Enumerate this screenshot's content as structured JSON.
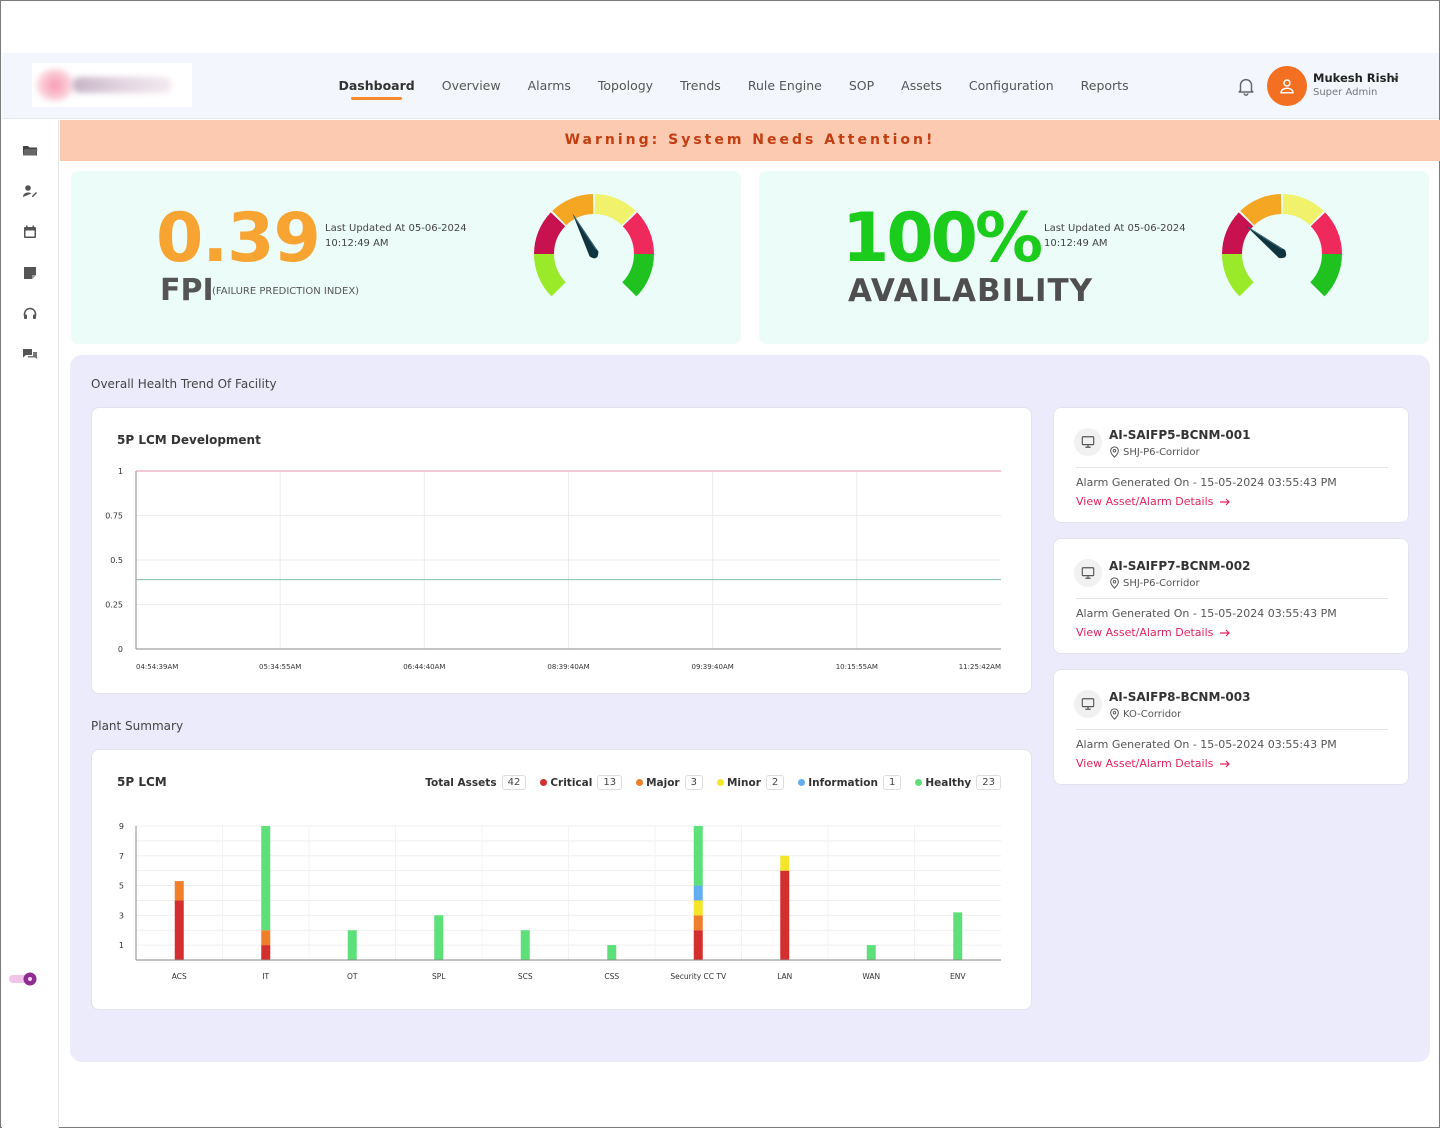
{
  "header": {
    "nav": [
      "Dashboard",
      "Overview",
      "Alarms",
      "Topology",
      "Trends",
      "Rule Engine",
      "SOP",
      "Assets",
      "Configuration",
      "Reports"
    ],
    "active_nav": "Dashboard",
    "user": {
      "name": "Mukesh Rishi",
      "role": "Super Admin"
    }
  },
  "sidebar": {
    "icons": [
      "folder-icon",
      "user-edit-icon",
      "calendar-icon",
      "note-icon",
      "headset-icon",
      "chat-icon"
    ]
  },
  "warning": "Warning: System Needs Attention!",
  "kpi": {
    "fpi": {
      "value": "0.39",
      "updated_line1": "Last Updated At 05-06-2024",
      "updated_line2": "10:12:49 AM",
      "label": "FPI",
      "sublabel": "(FAILURE PREDICTION INDEX)"
    },
    "availability": {
      "value": "100%",
      "updated_line1": "Last Updated At 05-06-2024",
      "updated_line2": "10:12:49 AM",
      "label": "AVAILABILITY"
    }
  },
  "main": {
    "health_title": "Overall Health Trend Of Facility",
    "health_card_title": "5P LCM Development",
    "plant_title": "Plant Summary",
    "plant_card_title": "5P LCM",
    "legend": [
      {
        "label": "Total Assets",
        "count": "42",
        "color": ""
      },
      {
        "label": "Critical",
        "count": "13",
        "color": "#d32f2f"
      },
      {
        "label": "Major",
        "count": "3",
        "color": "#f07f2c"
      },
      {
        "label": "Minor",
        "count": "2",
        "color": "#f3e52a"
      },
      {
        "label": "Information",
        "count": "1",
        "color": "#64aef0"
      },
      {
        "label": "Healthy",
        "count": "23",
        "color": "#5de07a"
      }
    ]
  },
  "alarms": [
    {
      "id": "AI-SAIFP5-BCNM-001",
      "location": "SHJ-P6-Corridor",
      "generated": "Alarm Generated On - 15-05-2024 03:55:43 PM",
      "link": "View Asset/Alarm Details"
    },
    {
      "id": "AI-SAIFP7-BCNM-002",
      "location": "SHJ-P6-Corridor",
      "generated": "Alarm Generated On - 15-05-2024 03:55:43 PM",
      "link": "View Asset/Alarm Details"
    },
    {
      "id": "AI-SAIFP8-BCNM-003",
      "location": "KO-Corridor",
      "generated": "Alarm Generated On - 15-05-2024 03:55:43 PM",
      "link": "View Asset/Alarm Details"
    }
  ],
  "chart_data": [
    {
      "type": "line",
      "title": "5P LCM Development",
      "x": [
        "04:54:39AM",
        "05:34:55AM",
        "06:44:40AM",
        "08:39:40AM",
        "09:39:40AM",
        "10:15:55AM",
        "11:25:42AM"
      ],
      "y_ticks": [
        "0",
        "0.25",
        "0.5",
        "0.75",
        "1"
      ],
      "ylim": [
        0,
        1
      ],
      "series": [
        {
          "values": [
            1,
            1,
            1,
            1,
            1,
            1,
            1
          ],
          "color": "#e68fb0"
        },
        {
          "values": [
            0.39,
            0.39,
            0.39,
            0.39,
            0.39,
            0.39,
            0.39
          ],
          "color": "#7fbfa6"
        }
      ],
      "grid": true
    },
    {
      "type": "bar",
      "stacked": true,
      "title": "5P LCM",
      "categories": [
        "ACS",
        "IT",
        "OT",
        "SPL",
        "SCS",
        "CSS",
        "Security CC TV",
        "LAN",
        "WAN",
        "ENV"
      ],
      "y_ticks": [
        "1",
        "3",
        "5",
        "7",
        "9"
      ],
      "ylim": [
        0,
        9
      ],
      "series": [
        {
          "name": "Critical",
          "color": "#d32f2f",
          "values": [
            4,
            1,
            0,
            0,
            0,
            0,
            2,
            6,
            0,
            0
          ]
        },
        {
          "name": "Major",
          "color": "#f07f2c",
          "values": [
            1.3,
            1,
            0,
            0,
            0,
            0,
            1,
            0,
            0,
            0
          ]
        },
        {
          "name": "Minor",
          "color": "#f3e52a",
          "values": [
            0,
            0,
            0,
            0,
            0,
            0,
            1,
            1,
            0,
            0
          ]
        },
        {
          "name": "Information",
          "color": "#64aef0",
          "values": [
            0,
            0,
            0,
            0,
            0,
            0,
            1,
            0,
            0,
            0
          ]
        },
        {
          "name": "Healthy",
          "color": "#5de07a",
          "values": [
            0,
            7,
            2,
            3,
            2,
            1,
            4,
            0,
            1,
            3.2
          ]
        }
      ]
    }
  ],
  "gauges": {
    "fpi_needle_deg": -28,
    "availability_needle_deg": -52
  }
}
